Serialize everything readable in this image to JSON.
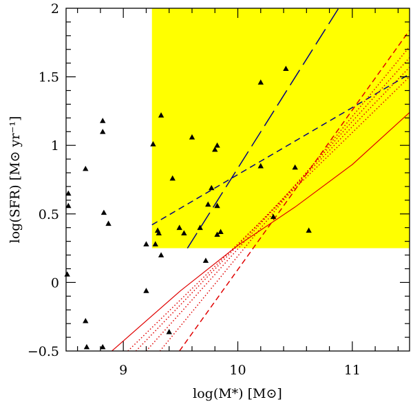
{
  "chart_data": {
    "type": "scatter",
    "xlabel": "log(M*) [M⊙]",
    "ylabel": "log(SFR) [M⊙ yr⁻¹]",
    "xlim": [
      8.5,
      11.5
    ],
    "ylim": [
      -0.5,
      2.0
    ],
    "x_ticks": [
      {
        "value": 9,
        "label": "9"
      },
      {
        "value": 10,
        "label": "10"
      },
      {
        "value": 11,
        "label": "11"
      }
    ],
    "y_ticks": [
      {
        "value": -0.5,
        "label": "−0.5"
      },
      {
        "value": 0,
        "label": "0"
      },
      {
        "value": 0.5,
        "label": "0.5"
      },
      {
        "value": 1,
        "label": "1"
      },
      {
        "value": 1.5,
        "label": "1.5"
      },
      {
        "value": 2,
        "label": "2"
      }
    ],
    "highlight_region": {
      "x_min": 9.25,
      "x_max": 11.5,
      "y_min": 0.25,
      "y_max": 2.0,
      "color": "#ffff00"
    },
    "points": [
      [
        8.52,
        0.65
      ],
      [
        8.52,
        0.56
      ],
      [
        8.51,
        0.06
      ],
      [
        8.67,
        0.83
      ],
      [
        8.67,
        -0.28
      ],
      [
        8.68,
        -0.47
      ],
      [
        8.82,
        1.18
      ],
      [
        8.82,
        1.1
      ],
      [
        8.83,
        0.51
      ],
      [
        8.82,
        -0.47
      ],
      [
        8.87,
        0.43
      ],
      [
        9.2,
        0.28
      ],
      [
        9.2,
        -0.06
      ],
      [
        9.26,
        1.01
      ],
      [
        9.28,
        0.28
      ],
      [
        9.3,
        0.38
      ],
      [
        9.31,
        0.36
      ],
      [
        9.33,
        1.22
      ],
      [
        9.33,
        0.2
      ],
      [
        9.4,
        -0.36
      ],
      [
        9.43,
        0.76
      ],
      [
        9.49,
        0.4
      ],
      [
        9.53,
        0.36
      ],
      [
        9.6,
        1.06
      ],
      [
        9.67,
        0.4
      ],
      [
        9.72,
        0.16
      ],
      [
        9.74,
        0.57
      ],
      [
        9.77,
        0.69
      ],
      [
        9.8,
        0.97
      ],
      [
        9.82,
        1.0
      ],
      [
        9.82,
        0.56
      ],
      [
        9.82,
        0.35
      ],
      [
        9.85,
        0.37
      ],
      [
        10.2,
        1.46
      ],
      [
        10.2,
        0.85
      ],
      [
        10.31,
        0.48
      ],
      [
        10.42,
        1.56
      ],
      [
        10.5,
        0.84
      ],
      [
        10.62,
        0.38
      ]
    ],
    "series": [
      {
        "name": "long-dashed fit",
        "color": "#000080",
        "style": "long-dash",
        "x": [
          9.56,
          10.88
        ],
        "y": [
          0.25,
          2.0
        ]
      },
      {
        "name": "short-dashed fit",
        "color": "#000080",
        "style": "short-dash",
        "x": [
          9.25,
          11.5
        ],
        "y": [
          0.42,
          1.52
        ]
      },
      {
        "name": "solid relation",
        "color": "#e00000",
        "style": "solid",
        "x": [
          8.9,
          9.5,
          10.0,
          10.5,
          11.0,
          11.5
        ],
        "y": [
          -0.5,
          -0.06,
          0.27,
          0.55,
          0.86,
          1.24
        ]
      },
      {
        "name": "dashed relation",
        "color": "#e00000",
        "style": "dash",
        "x": [
          9.49,
          11.5
        ],
        "y": [
          -0.5,
          1.84
        ]
      },
      {
        "name": "dotted relation 1",
        "color": "#e00000",
        "style": "dot",
        "x": [
          9.32,
          11.5
        ],
        "y": [
          -0.5,
          1.72
        ]
      },
      {
        "name": "dotted relation 2",
        "color": "#e00000",
        "style": "dot",
        "x": [
          9.2,
          11.5
        ],
        "y": [
          -0.5,
          1.64
        ]
      },
      {
        "name": "dotted relation 3",
        "color": "#e00000",
        "style": "dot",
        "x": [
          9.11,
          11.5
        ],
        "y": [
          -0.5,
          1.57
        ]
      },
      {
        "name": "dotted relation 4",
        "color": "#e00000",
        "style": "dot",
        "x": [
          9.04,
          11.5
        ],
        "y": [
          -0.5,
          1.5
        ]
      }
    ]
  }
}
